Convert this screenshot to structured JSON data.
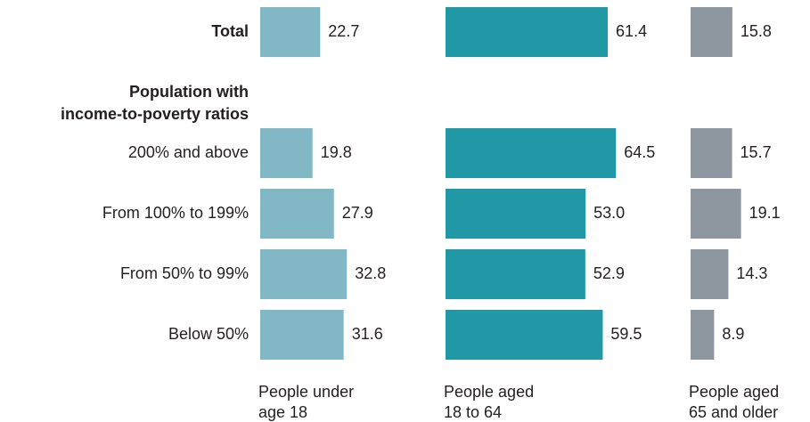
{
  "chart_data": {
    "type": "bar",
    "orientation": "horizontal",
    "group_heading": [
      "Population with",
      "income-to-poverty ratios"
    ],
    "categories": [
      "Total",
      "200% and above",
      "From 100% to 199%",
      "From 50% to 99%",
      "Below 50%"
    ],
    "series": [
      {
        "name": [
          "People under",
          "age 18"
        ],
        "values": [
          22.7,
          19.8,
          27.9,
          32.8,
          31.6
        ],
        "labels": [
          "22.7",
          "19.8",
          "27.9",
          "32.8",
          "31.6"
        ],
        "color": "#82b7c5"
      },
      {
        "name": [
          "People aged",
          "18 to 64"
        ],
        "values": [
          61.4,
          64.5,
          53.0,
          52.9,
          59.5
        ],
        "labels": [
          "61.4",
          "64.5",
          "53.0",
          "52.9",
          "59.5"
        ],
        "color": "#2098a6"
      },
      {
        "name": [
          "People aged",
          "65 and older"
        ],
        "values": [
          15.8,
          15.7,
          19.1,
          14.3,
          8.9
        ],
        "labels": [
          "15.8",
          "15.7",
          "19.1",
          "14.3",
          "8.9"
        ],
        "color": "#8e969f"
      }
    ],
    "bold_categories": [
      "Total"
    ],
    "xlim": [
      0,
      100
    ]
  }
}
